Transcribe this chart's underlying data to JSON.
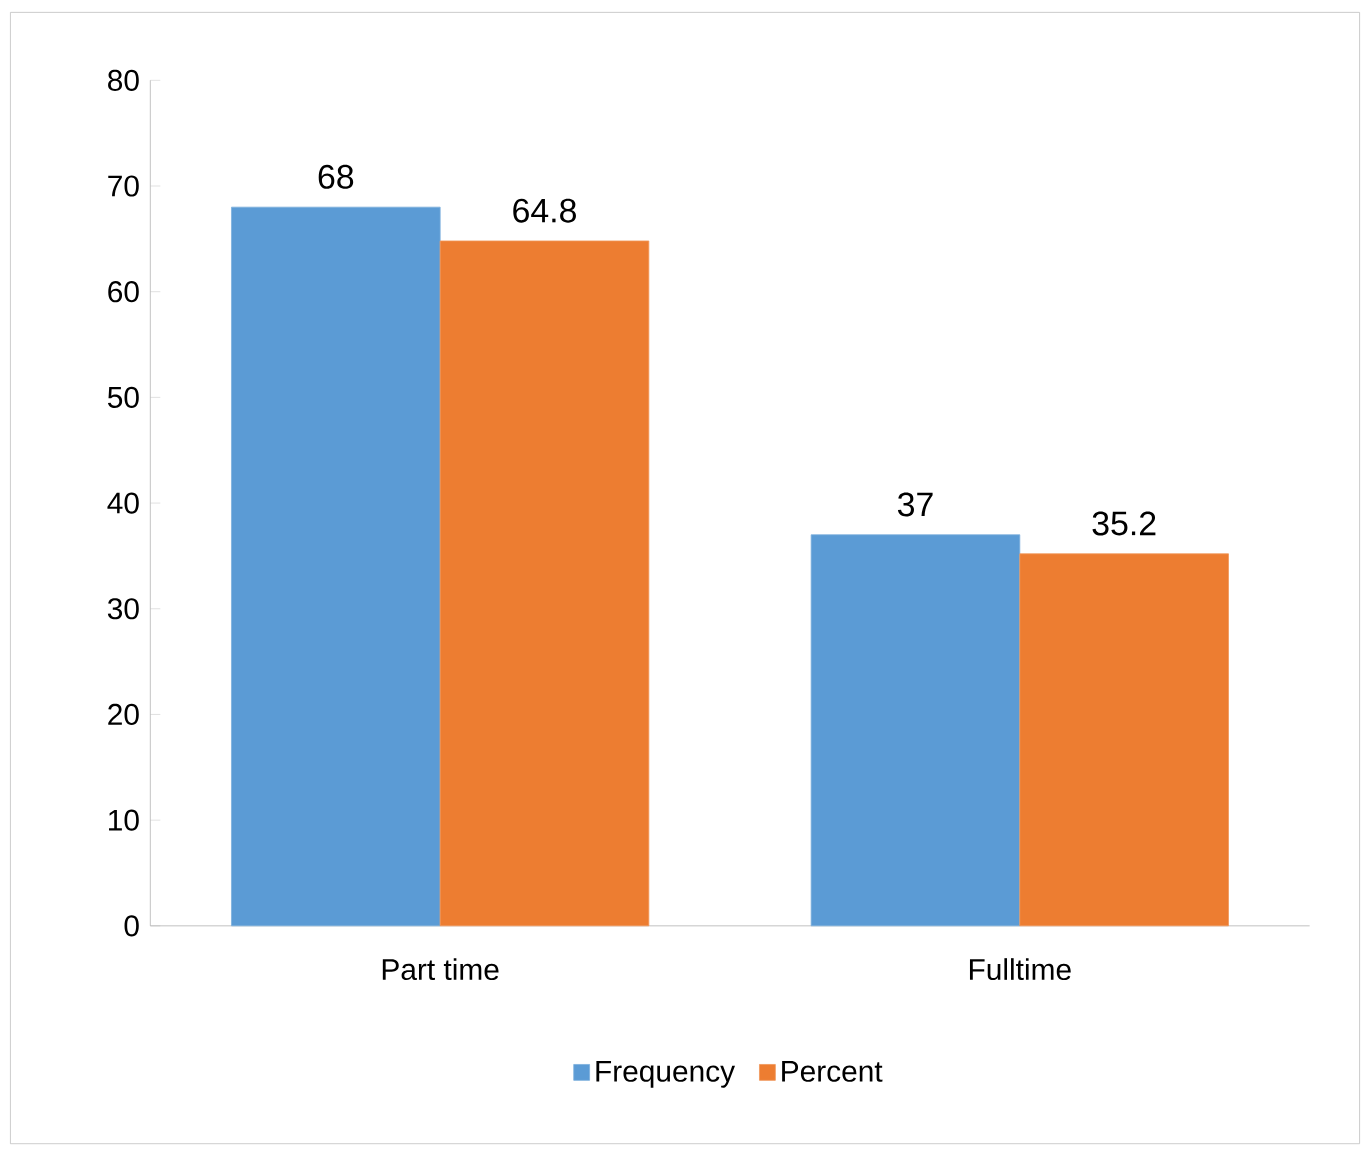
{
  "chart_data": {
    "type": "bar",
    "categories": [
      "Part time",
      "Fulltime"
    ],
    "series": [
      {
        "name": "Frequency",
        "color": "#5b9bd5",
        "values": [
          68,
          37
        ]
      },
      {
        "name": "Percent",
        "color": "#ed7d31",
        "values": [
          64.8,
          35.2
        ]
      }
    ],
    "ylim": [
      0,
      80
    ],
    "yticks": [
      0,
      10,
      20,
      30,
      40,
      50,
      60,
      70,
      80
    ],
    "data_labels": true,
    "legend": "bottom",
    "grid": false
  }
}
